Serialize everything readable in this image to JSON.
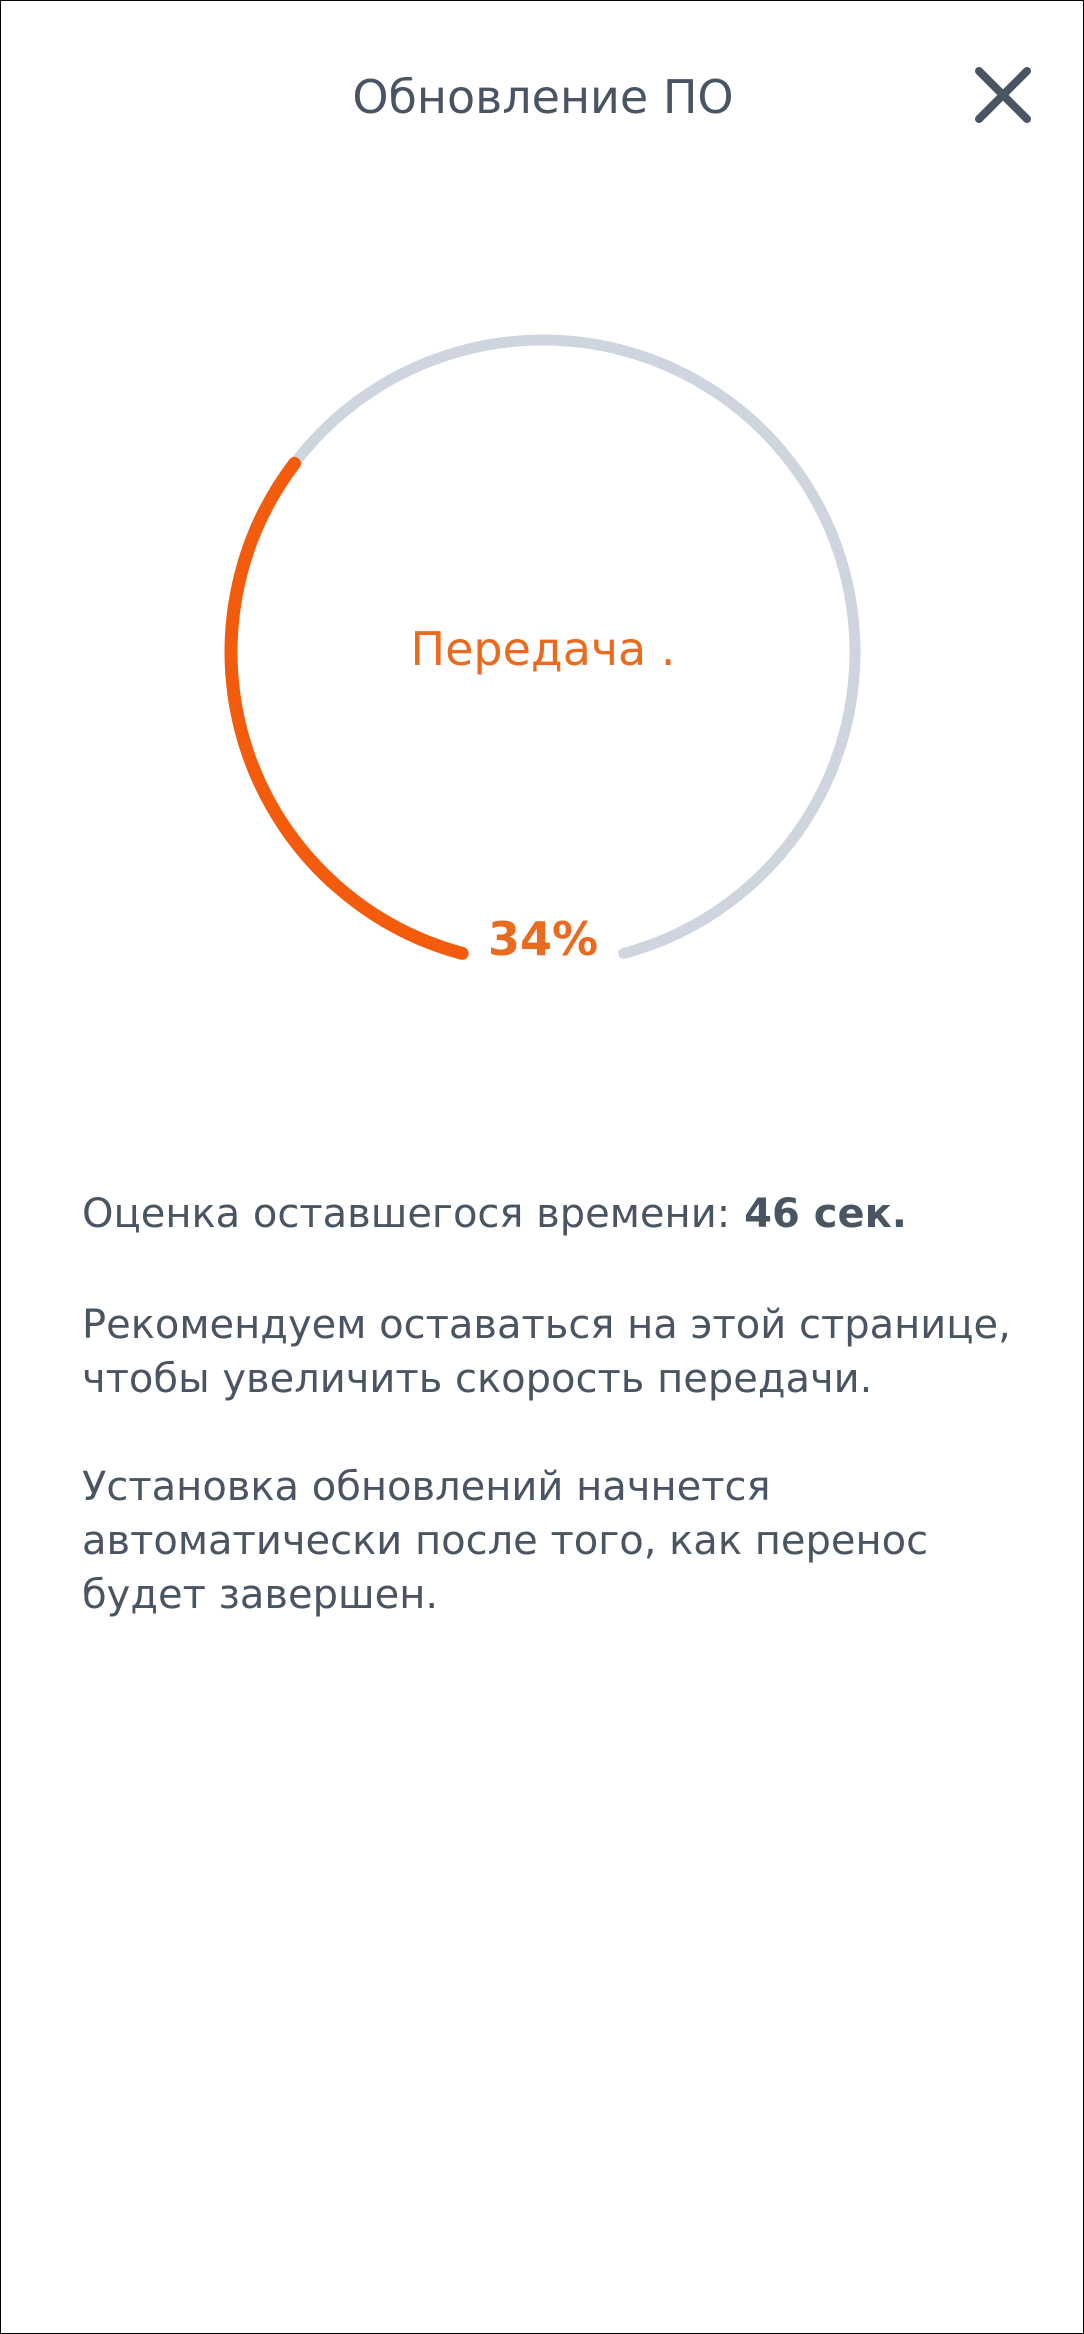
{
  "header": {
    "title": "Обновление ПО",
    "close_icon": "close-icon"
  },
  "progress": {
    "status": "Передача .",
    "percent_label": "34%",
    "percent_value": 34,
    "accent_color": "#f25c0c",
    "track_color": "#cfd5df"
  },
  "info": {
    "time_label": "Оценка оставшегося времени:",
    "time_value": "46 сек.",
    "recommend_line1": "Рекомендуем оставаться на этой странице,",
    "recommend_line2": "чтобы увеличить скорость передачи.",
    "install_line1": "Установка обновлений начнется",
    "install_line2": "автоматически после того, как перенос",
    "install_line3": "будет завершен."
  }
}
